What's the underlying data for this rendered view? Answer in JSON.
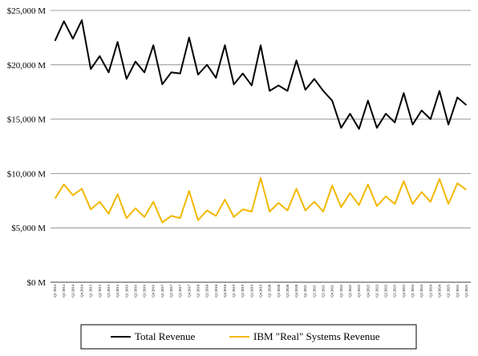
{
  "chart_data": {
    "type": "line",
    "x": [
      "Q1 2014",
      "Q2 2014",
      "Q3 2014",
      "Q4 2014",
      "Q1 2015",
      "Q2 2015",
      "Q3 2015",
      "Q4 2015",
      "Q1 2016",
      "Q2 2016",
      "Q3 2016",
      "Q4 2016",
      "Q1 2017",
      "Q2 2017",
      "Q3 2017",
      "Q4 2017",
      "Q1 2018",
      "Q2 2018",
      "Q3 2018",
      "Q4 2018",
      "Q1 2019",
      "Q2 2019",
      "Q3 2019",
      "Q4 2019",
      "Q1 2020",
      "Q2 2020",
      "Q3 2020",
      "Q4 2020",
      "Q1 2021",
      "Q2 2021",
      "Q3 2021",
      "Q4 2021",
      "Q1 2022",
      "Q2 2022",
      "Q3 2022",
      "Q4 2022",
      "Q1 2023",
      "Q2 2023",
      "Q3 2023",
      "Q4 2023",
      "Q1 2024",
      "Q2 2024",
      "Q3 2024",
      "Q4 2024",
      "Q1 2025",
      "Q2 2025",
      "Q3 2025"
    ],
    "series": [
      {
        "name": "Total Revenue",
        "color": "#000000",
        "values": [
          22200,
          24000,
          22400,
          24100,
          19600,
          20800,
          19300,
          22100,
          18700,
          20300,
          19300,
          21800,
          18200,
          19300,
          19200,
          22500,
          19100,
          20000,
          18800,
          21800,
          18200,
          19200,
          18100,
          21800,
          17600,
          18100,
          17600,
          20400,
          17700,
          18700,
          17600,
          16700,
          14200,
          15500,
          14100,
          16700,
          14200,
          15500,
          14700,
          17400,
          14500,
          15800,
          15000,
          17600,
          14500,
          17000,
          16300
        ]
      },
      {
        "name": "IBM \"Real\" Systems Revenue",
        "color": "#F2B800",
        "values": [
          7700,
          9000,
          8000,
          8600,
          6700,
          7400,
          6300,
          8100,
          5900,
          6800,
          6000,
          7400,
          5500,
          6100,
          5900,
          8400,
          5700,
          6600,
          6100,
          7600,
          6000,
          6700,
          6500,
          9600,
          6500,
          7300,
          6600,
          8600,
          6600,
          7400,
          6500,
          8900,
          6900,
          8200,
          7100,
          9000,
          7000,
          7900,
          7200,
          9300,
          7200,
          8300,
          7400,
          9500,
          7200,
          9100,
          8500
        ]
      }
    ],
    "y_ticks": [
      "$0 M",
      "$5,000 M",
      "$10,000 M",
      "$15,000 M",
      "$20,000 M",
      "$25,000 M"
    ],
    "ylim": [
      0,
      25000
    ],
    "grid": true,
    "legend": "bottom"
  }
}
